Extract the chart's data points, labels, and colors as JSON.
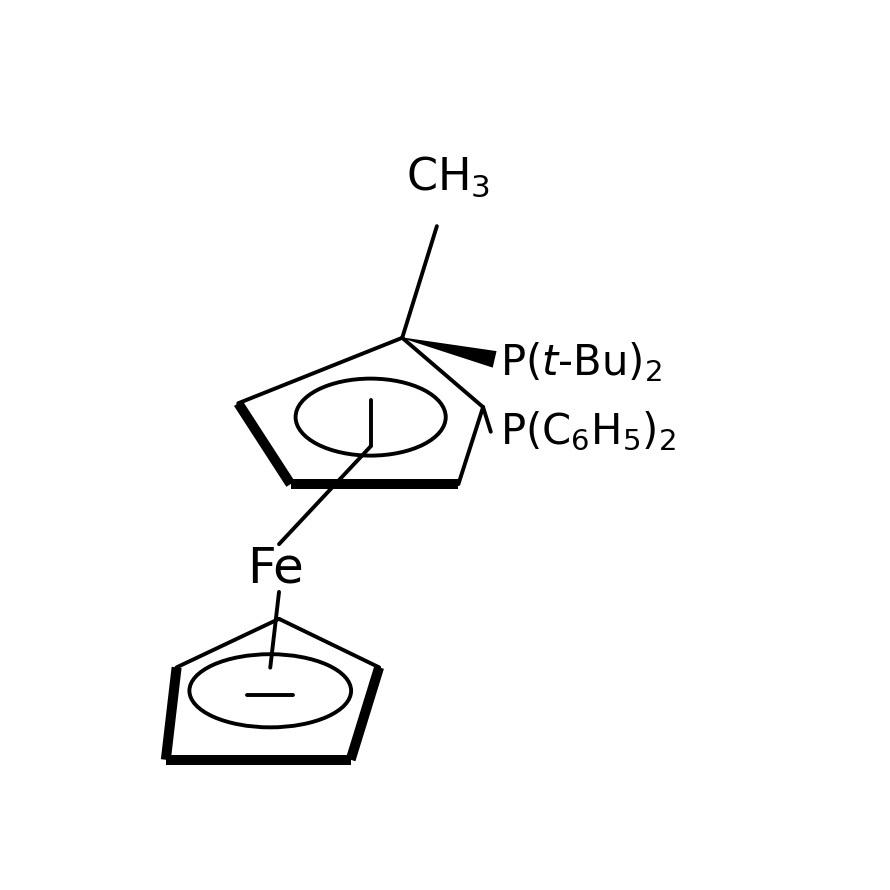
{
  "bg_color": "#ffffff",
  "line_color": "#000000",
  "lw": 2.8,
  "bold_lw": 9.0
}
